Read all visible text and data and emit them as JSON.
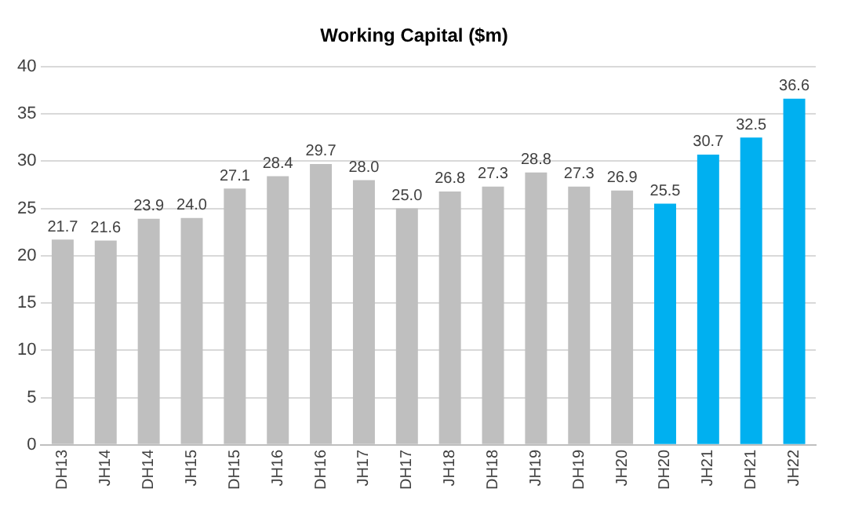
{
  "chart_data": {
    "type": "bar",
    "title": "Working Capital ($m)",
    "categories": [
      "DH13",
      "JH14",
      "DH14",
      "JH15",
      "DH15",
      "JH16",
      "DH16",
      "JH17",
      "DH17",
      "JH18",
      "DH18",
      "JH19",
      "DH19",
      "JH20",
      "DH20",
      "JH21",
      "DH21",
      "JH22"
    ],
    "values": [
      21.7,
      21.6,
      23.9,
      24.0,
      27.1,
      28.4,
      29.7,
      28.0,
      25.0,
      26.8,
      27.3,
      28.8,
      27.3,
      26.9,
      25.5,
      30.7,
      32.5,
      36.6
    ],
    "value_labels": [
      "21.7",
      "21.6",
      "23.9",
      "24.0",
      "27.1",
      "28.4",
      "29.7",
      "28.0",
      "25.0",
      "26.8",
      "27.3",
      "28.8",
      "27.3",
      "26.9",
      "25.5",
      "30.7",
      "32.5",
      "36.6"
    ],
    "colors": [
      "#bfbfbf",
      "#bfbfbf",
      "#bfbfbf",
      "#bfbfbf",
      "#bfbfbf",
      "#bfbfbf",
      "#bfbfbf",
      "#bfbfbf",
      "#bfbfbf",
      "#bfbfbf",
      "#bfbfbf",
      "#bfbfbf",
      "#bfbfbf",
      "#bfbfbf",
      "#00b0f0",
      "#00b0f0",
      "#00b0f0",
      "#00b0f0"
    ],
    "ylim": [
      0,
      40
    ],
    "yticks": [
      0,
      5,
      10,
      15,
      20,
      25,
      30,
      35,
      40
    ],
    "grid": "y",
    "legend": false
  }
}
